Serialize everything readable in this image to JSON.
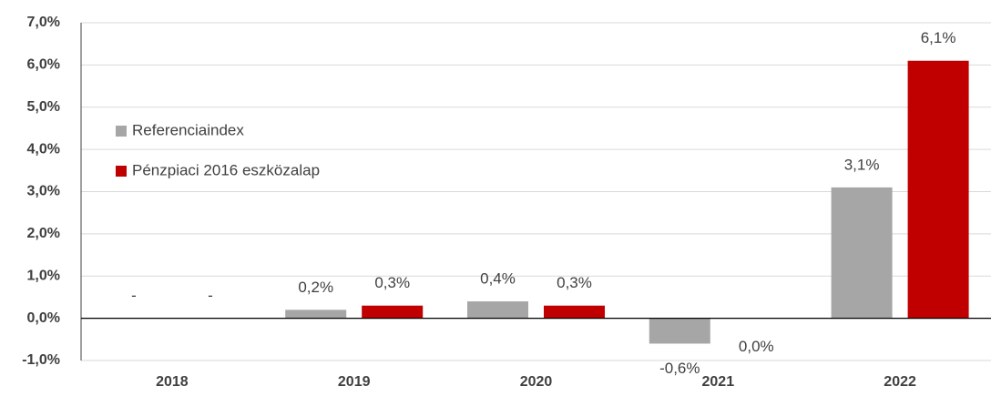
{
  "chart_data": {
    "type": "bar",
    "categories": [
      "2018",
      "2019",
      "2020",
      "2021",
      "2022"
    ],
    "series": [
      {
        "name": "Referenciaindex",
        "color": "#a6a6a6",
        "values": [
          null,
          0.2,
          0.4,
          -0.6,
          3.1
        ],
        "value_labels": [
          "-",
          "0,2%",
          "0,4%",
          "-0,6%",
          "3,1%"
        ]
      },
      {
        "name": "Pénzpiaci 2016 eszközalap",
        "color": "#c00000",
        "values": [
          null,
          0.3,
          0.3,
          0.0,
          6.1
        ],
        "value_labels": [
          "-",
          "0,3%",
          "0,3%",
          "0,0%",
          "6,1%"
        ]
      }
    ],
    "ylim": [
      -1,
      7
    ],
    "yticks": [
      {
        "value": -1,
        "label": "-1,0%"
      },
      {
        "value": 0,
        "label": "0,0%"
      },
      {
        "value": 1,
        "label": "1,0%"
      },
      {
        "value": 2,
        "label": "2,0%"
      },
      {
        "value": 3,
        "label": "3,0%"
      },
      {
        "value": 4,
        "label": "4,0%"
      },
      {
        "value": 5,
        "label": "5,0%"
      },
      {
        "value": 6,
        "label": "6,0%"
      },
      {
        "value": 7,
        "label": "7,0%"
      }
    ],
    "grid": true,
    "legend": "left"
  }
}
